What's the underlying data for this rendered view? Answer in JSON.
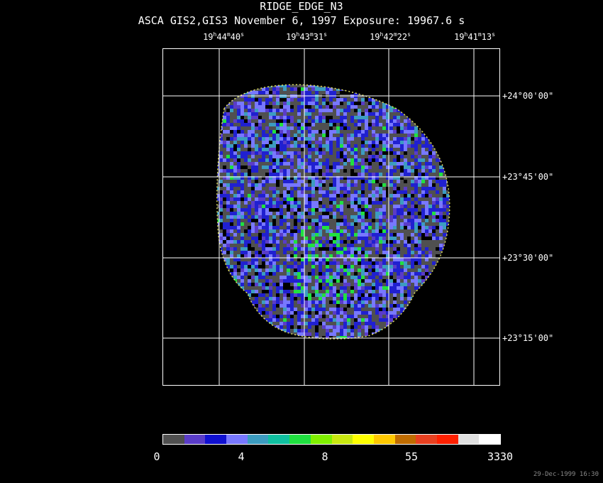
{
  "header": {
    "title": "RIDGE_EDGE_N3",
    "subtitle": "ASCA GIS2,GIS3 November 6, 1997 Exposure: 19967.6 s"
  },
  "ra_labels": [
    {
      "h": "19",
      "m": "44",
      "s": "40"
    },
    {
      "h": "19",
      "m": "43",
      "s": "31"
    },
    {
      "h": "19",
      "m": "42",
      "s": "22"
    },
    {
      "h": "19",
      "m": "41",
      "s": "13"
    }
  ],
  "dec_labels": [
    "+24°00'00\"",
    "+23°45'00\"",
    "+23°30'00\"",
    "+23°15'00\""
  ],
  "colorbar": {
    "colors": [
      "#505050",
      "#5a3cc8",
      "#1010d0",
      "#7878ff",
      "#3c9cc0",
      "#10c0a0",
      "#20e040",
      "#80f000",
      "#c8e810",
      "#ffff00",
      "#ffc800",
      "#c06c00",
      "#e84020",
      "#ff2000",
      "#e0e0e0",
      "#ffffff"
    ],
    "labels": [
      "0",
      "4",
      "8",
      "55",
      "3330"
    ]
  },
  "timestamp": "29-Dec-1999 16:30"
}
